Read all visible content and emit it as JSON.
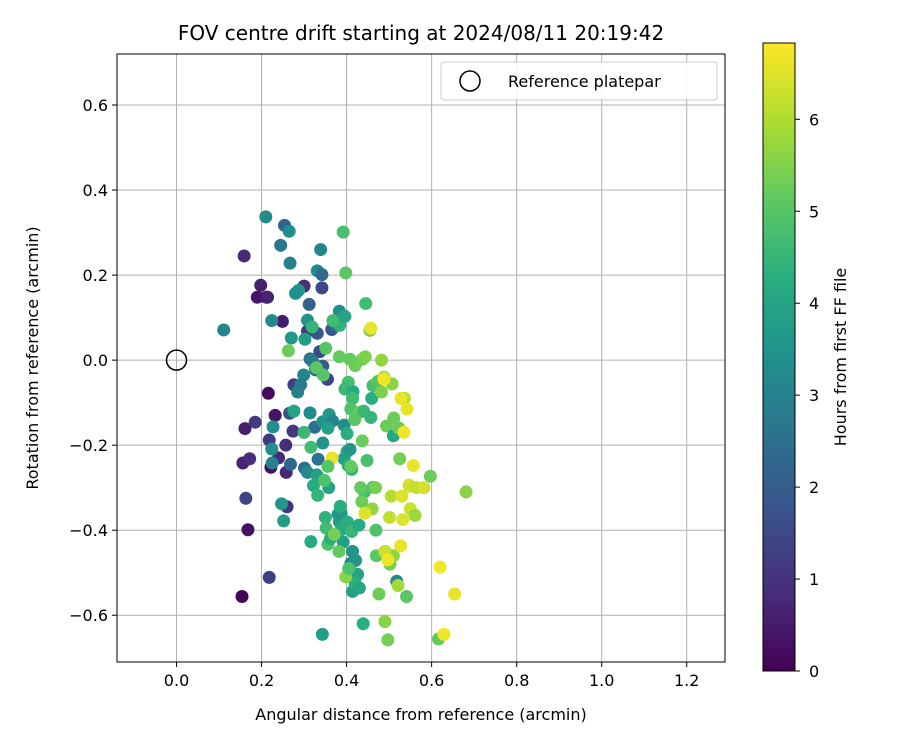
{
  "chart_data": {
    "type": "scatter",
    "title": "FOV centre drift starting at 2024/08/11 20:19:42",
    "xlabel": "Angular distance from reference (arcmin)",
    "ylabel": "Rotation from reference (arcmin)",
    "xlim": [
      -0.14,
      1.29
    ],
    "ylim": [
      -0.71,
      0.72
    ],
    "xticks": [
      0.0,
      0.2,
      0.4,
      0.6,
      0.8,
      1.0,
      1.2
    ],
    "xtick_labels": [
      "0.0",
      "0.2",
      "0.4",
      "0.6",
      "0.8",
      "1.0",
      "1.2"
    ],
    "yticks": [
      -0.6,
      -0.4,
      -0.2,
      0.0,
      0.2,
      0.4,
      0.6
    ],
    "ytick_labels": [
      "−0.6",
      "−0.4",
      "−0.2",
      "0.0",
      "0.2",
      "0.4",
      "0.6"
    ],
    "grid": true,
    "legend": {
      "position": "top-right",
      "entries": [
        "Reference platepar"
      ]
    },
    "reference_point": {
      "x": 0.0,
      "y": 0.0
    },
    "colorbar": {
      "label": "Hours from first FF file",
      "range": [
        0,
        6.83
      ],
      "ticks": [
        0,
        1,
        2,
        3,
        4,
        5,
        6
      ],
      "tick_labels": [
        "0",
        "1",
        "2",
        "3",
        "4",
        "5",
        "6"
      ],
      "colormap": "viridis"
    },
    "points": [
      [
        0.154,
        -0.556,
        0.1
      ],
      [
        0.168,
        -0.399,
        0.3
      ],
      [
        0.161,
        -0.161,
        0.6
      ],
      [
        0.156,
        -0.242,
        0.7
      ],
      [
        0.172,
        -0.232,
        0.9
      ],
      [
        0.163,
        -0.325,
        1.4
      ],
      [
        0.159,
        0.245,
        0.8
      ],
      [
        0.19,
        0.148,
        0.4
      ],
      [
        0.198,
        0.176,
        0.6
      ],
      [
        0.211,
        0.148,
        0.4
      ],
      [
        0.213,
        0.148,
        0.2
      ],
      [
        0.214,
        0.148,
        0.7
      ],
      [
        0.249,
        0.091,
        0.5
      ],
      [
        0.216,
        -0.078,
        0.2
      ],
      [
        0.218,
        -0.511,
        1.3
      ],
      [
        0.185,
        -0.146,
        1.2
      ],
      [
        0.218,
        -0.188,
        1.2
      ],
      [
        0.222,
        -0.252,
        0.3
      ],
      [
        0.232,
        -0.13,
        0.4
      ],
      [
        0.24,
        -0.23,
        0.8
      ],
      [
        0.257,
        -0.2,
        0.9
      ],
      [
        0.258,
        -0.264,
        0.8
      ],
      [
        0.26,
        -0.345,
        1.0
      ],
      [
        0.266,
        -0.125,
        1.7
      ],
      [
        0.274,
        -0.167,
        1.1
      ],
      [
        0.276,
        -0.058,
        1.3
      ],
      [
        0.3,
        0.174,
        0.9
      ],
      [
        0.312,
        0.131,
        2.1
      ],
      [
        0.308,
        0.068,
        1.1
      ],
      [
        0.331,
        0.063,
        1.8
      ],
      [
        0.342,
        0.17,
        1.5
      ],
      [
        0.337,
        0.02,
        1.6
      ],
      [
        0.344,
        -0.014,
        2.0
      ],
      [
        0.355,
        -0.045,
        1.4
      ],
      [
        0.365,
        0.072,
        1.9
      ],
      [
        0.375,
        0.082,
        2.6
      ],
      [
        0.268,
        -0.245,
        2.3
      ],
      [
        0.254,
        0.317,
        2.2
      ],
      [
        0.245,
        0.27,
        2.7
      ],
      [
        0.267,
        0.228,
        3.0
      ],
      [
        0.111,
        0.071,
        3.1
      ],
      [
        0.21,
        0.337,
        3.3
      ],
      [
        0.265,
        0.303,
        3.4
      ],
      [
        0.339,
        0.26,
        3.1
      ],
      [
        0.331,
        0.21,
        3.3
      ],
      [
        0.342,
        0.201,
        2.4
      ],
      [
        0.287,
        0.164,
        3.6
      ],
      [
        0.28,
        0.157,
        3.4
      ],
      [
        0.224,
        0.093,
        3.2
      ],
      [
        0.308,
        0.094,
        3.5
      ],
      [
        0.27,
        0.052,
        3.6
      ],
      [
        0.302,
        0.049,
        3.8
      ],
      [
        0.314,
        0.003,
        2.7
      ],
      [
        0.32,
        -0.003,
        2.9
      ],
      [
        0.327,
        -0.023,
        2.4
      ],
      [
        0.299,
        -0.035,
        3.1
      ],
      [
        0.292,
        -0.058,
        2.8
      ],
      [
        0.285,
        -0.075,
        3.0
      ],
      [
        0.314,
        -0.124,
        3.3
      ],
      [
        0.325,
        -0.158,
        2.5
      ],
      [
        0.344,
        -0.145,
        3.5
      ],
      [
        0.359,
        -0.128,
        3.7
      ],
      [
        0.367,
        -0.143,
        3.1
      ],
      [
        0.356,
        -0.16,
        3.9
      ],
      [
        0.344,
        -0.195,
        3.5
      ],
      [
        0.333,
        -0.233,
        2.6
      ],
      [
        0.301,
        -0.254,
        2.5
      ],
      [
        0.308,
        -0.264,
        3.2
      ],
      [
        0.225,
        -0.242,
        3.0
      ],
      [
        0.224,
        -0.209,
        3.4
      ],
      [
        0.227,
        -0.157,
        3.4
      ],
      [
        0.247,
        -0.338,
        3.6
      ],
      [
        0.252,
        -0.378,
        3.8
      ],
      [
        0.33,
        -0.27,
        3.9
      ],
      [
        0.358,
        -0.3,
        4.0
      ],
      [
        0.383,
        0.115,
        3.4
      ],
      [
        0.384,
        0.082,
        4.4
      ],
      [
        0.396,
        0.103,
        4.0
      ],
      [
        0.368,
        0.093,
        4.7
      ],
      [
        0.38,
        -0.363,
        3.7
      ],
      [
        0.383,
        -0.38,
        3.8
      ],
      [
        0.387,
        -0.36,
        3.6
      ],
      [
        0.385,
        -0.344,
        4.3
      ],
      [
        0.392,
        -0.428,
        3.9
      ],
      [
        0.387,
        -0.399,
        4.2
      ],
      [
        0.401,
        -0.215,
        4.0
      ],
      [
        0.394,
        -0.232,
        3.9
      ],
      [
        0.394,
        -0.153,
        3.4
      ],
      [
        0.401,
        -0.173,
        4.3
      ],
      [
        0.408,
        -0.21,
        3.6
      ],
      [
        0.404,
        -0.248,
        4.2
      ],
      [
        0.412,
        -0.257,
        4.5
      ],
      [
        0.414,
        -0.45,
        3.5
      ],
      [
        0.41,
        -0.478,
        3.2
      ],
      [
        0.421,
        -0.471,
        3.6
      ],
      [
        0.414,
        -0.544,
        3.9
      ],
      [
        0.426,
        -0.504,
        4.0
      ],
      [
        0.42,
        -0.525,
        4.4
      ],
      [
        0.43,
        -0.536,
        4.1
      ],
      [
        0.439,
        -0.62,
        4.3
      ],
      [
        0.402,
        -0.381,
        4.3
      ],
      [
        0.412,
        -0.403,
        4.6
      ],
      [
        0.429,
        -0.388,
        4.2
      ],
      [
        0.343,
        -0.645,
        3.8
      ],
      [
        0.276,
        -0.12,
        4.0
      ],
      [
        0.3,
        -0.17,
        4.6
      ],
      [
        0.316,
        -0.205,
        4.7
      ],
      [
        0.322,
        -0.295,
        4.2
      ],
      [
        0.332,
        -0.318,
        4.5
      ],
      [
        0.348,
        -0.283,
        4.9
      ],
      [
        0.35,
        -0.37,
        4.4
      ],
      [
        0.352,
        -0.395,
        4.7
      ],
      [
        0.356,
        -0.433,
        4.9
      ],
      [
        0.362,
        -0.42,
        4.3
      ],
      [
        0.316,
        -0.427,
        4.2
      ],
      [
        0.319,
        0.078,
        4.5
      ],
      [
        0.351,
        0.028,
        5.0
      ],
      [
        0.263,
        0.022,
        5.3
      ],
      [
        0.329,
        -0.018,
        5.1
      ],
      [
        0.345,
        -0.035,
        5.0
      ],
      [
        0.383,
        0.008,
        5.2
      ],
      [
        0.404,
        -0.052,
        4.8
      ],
      [
        0.396,
        -0.068,
        4.6
      ],
      [
        0.415,
        -0.074,
        4.2
      ],
      [
        0.414,
        -0.09,
        4.7
      ],
      [
        0.41,
        -0.115,
        4.9
      ],
      [
        0.43,
        -0.123,
        5.3
      ],
      [
        0.44,
        -0.12,
        4.6
      ],
      [
        0.457,
        -0.135,
        4.5
      ],
      [
        0.459,
        -0.09,
        4.3
      ],
      [
        0.462,
        -0.06,
        4.8
      ],
      [
        0.474,
        -0.05,
        5.0
      ],
      [
        0.482,
        -0.075,
        5.5
      ],
      [
        0.494,
        -0.155,
        5.3
      ],
      [
        0.51,
        -0.178,
        4.1
      ],
      [
        0.523,
        -0.16,
        5.3
      ],
      [
        0.525,
        -0.232,
        5.4
      ],
      [
        0.511,
        -0.136,
        5.3
      ],
      [
        0.448,
        -0.236,
        4.8
      ],
      [
        0.442,
        -0.31,
        4.8
      ],
      [
        0.433,
        -0.3,
        5.2
      ],
      [
        0.436,
        -0.333,
        5.3
      ],
      [
        0.462,
        -0.299,
        5.0
      ],
      [
        0.468,
        -0.3,
        5.4
      ],
      [
        0.46,
        -0.35,
        5.7
      ],
      [
        0.469,
        -0.4,
        4.9
      ],
      [
        0.47,
        -0.46,
        5.1
      ],
      [
        0.491,
        -0.45,
        5.0
      ],
      [
        0.476,
        -0.55,
        5.3
      ],
      [
        0.502,
        -0.48,
        5.4
      ],
      [
        0.51,
        -0.46,
        5.7
      ],
      [
        0.518,
        -0.52,
        3.2
      ],
      [
        0.521,
        -0.53,
        5.9
      ],
      [
        0.541,
        -0.556,
        5.1
      ],
      [
        0.49,
        -0.615,
        5.6
      ],
      [
        0.497,
        -0.658,
        5.4
      ],
      [
        0.616,
        -0.656,
        5.2
      ],
      [
        0.398,
        0.205,
        5.1
      ],
      [
        0.445,
        0.133,
        4.7
      ],
      [
        0.392,
        0.301,
        4.8
      ],
      [
        0.408,
        0.002,
        5.2
      ],
      [
        0.42,
        -0.013,
        5.3
      ],
      [
        0.437,
        0.002,
        5.4
      ],
      [
        0.444,
        0.008,
        5.5
      ],
      [
        0.455,
        0.07,
        5.4
      ],
      [
        0.482,
        0.0,
        5.7
      ],
      [
        0.488,
        -0.04,
        6.0
      ],
      [
        0.507,
        -0.056,
        5.6
      ],
      [
        0.53,
        -0.09,
        5.8
      ],
      [
        0.536,
        -0.09,
        6.1
      ],
      [
        0.528,
        -0.09,
        6.6
      ],
      [
        0.505,
        -0.32,
        6.1
      ],
      [
        0.53,
        -0.32,
        6.5
      ],
      [
        0.548,
        -0.297,
        6.3
      ],
      [
        0.55,
        -0.35,
        6.3
      ],
      [
        0.561,
        -0.365,
        5.8
      ],
      [
        0.532,
        -0.375,
        6.5
      ],
      [
        0.501,
        -0.37,
        6.2
      ],
      [
        0.49,
        -0.45,
        6.3
      ],
      [
        0.497,
        -0.47,
        6.7
      ],
      [
        0.527,
        -0.437,
        6.6
      ],
      [
        0.535,
        -0.17,
        6.7
      ],
      [
        0.488,
        -0.045,
        6.7
      ],
      [
        0.547,
        -0.294,
        6.4
      ],
      [
        0.565,
        -0.3,
        6.2
      ],
      [
        0.582,
        -0.3,
        6.4
      ],
      [
        0.597,
        -0.273,
        5.3
      ],
      [
        0.681,
        -0.31,
        5.6
      ],
      [
        0.62,
        -0.487,
        6.7
      ],
      [
        0.654,
        -0.55,
        6.6
      ],
      [
        0.629,
        -0.645,
        6.7
      ],
      [
        0.542,
        -0.115,
        6.6
      ],
      [
        0.557,
        -0.248,
        6.6
      ],
      [
        0.457,
        0.075,
        6.6
      ],
      [
        0.443,
        -0.36,
        6.5
      ],
      [
        0.366,
        -0.23,
        6.6
      ],
      [
        0.356,
        -0.25,
        5.0
      ],
      [
        0.41,
        -0.25,
        5.2
      ],
      [
        0.419,
        -0.14,
        5.1
      ],
      [
        0.437,
        -0.19,
        5.3
      ],
      [
        0.371,
        -0.41,
        5.4
      ],
      [
        0.382,
        -0.45,
        5.2
      ],
      [
        0.398,
        -0.51,
        5.6
      ],
      [
        0.405,
        -0.49,
        4.9
      ]
    ]
  }
}
